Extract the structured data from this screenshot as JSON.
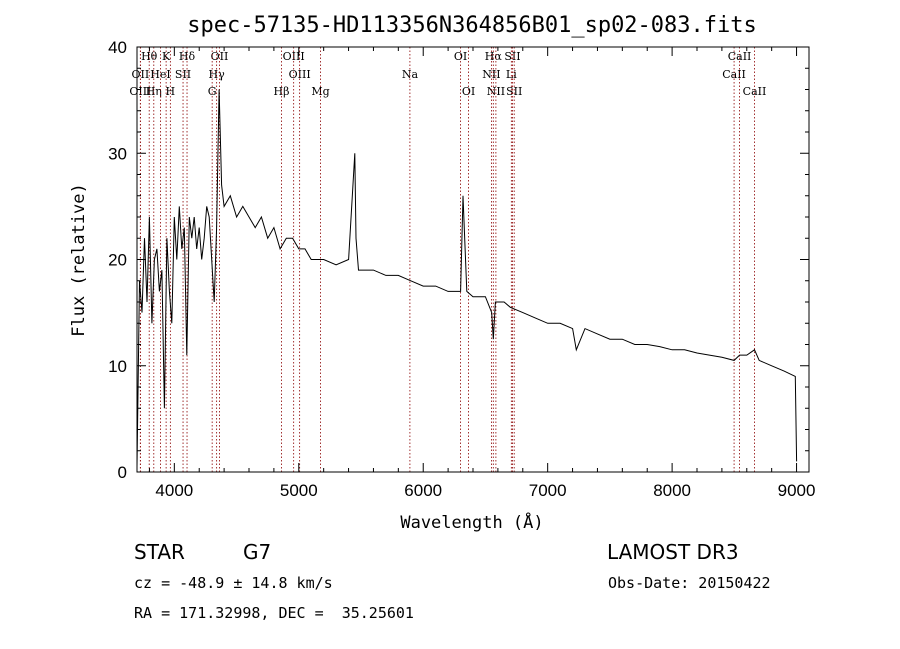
{
  "chart_data": {
    "type": "line",
    "title": "spec-57135-HD113356N364856B01_sp02-083.fits",
    "xlabel": "Wavelength (Å)",
    "ylabel": "Flux (relative)",
    "xlim": [
      3700,
      9100
    ],
    "ylim": [
      0,
      40
    ],
    "xticks": [
      4000,
      5000,
      6000,
      7000,
      8000,
      9000
    ],
    "yticks": [
      0,
      10,
      20,
      30,
      40
    ],
    "spectral_lines": [
      {
        "label": "Hθ",
        "wavelength": 3798,
        "row": 0
      },
      {
        "label": "K",
        "wavelength": 3934,
        "row": 0
      },
      {
        "label": "Hδ",
        "wavelength": 4102,
        "row": 0
      },
      {
        "label": "OII",
        "wavelength": 4363,
        "row": 0
      },
      {
        "label": "OIII",
        "wavelength": 4959,
        "row": 0
      },
      {
        "label": "OI",
        "wavelength": 6300,
        "row": 0
      },
      {
        "label": "Hα",
        "wavelength": 6563,
        "row": 0
      },
      {
        "label": "SII",
        "wavelength": 6717,
        "row": 0
      },
      {
        "label": "CaII",
        "wavelength": 8542,
        "row": 0
      },
      {
        "label": "OII",
        "wavelength": 3727,
        "row": 1
      },
      {
        "label": "HeI",
        "wavelength": 3889,
        "row": 1
      },
      {
        "label": "SII",
        "wavelength": 4070,
        "row": 1
      },
      {
        "label": "Hγ",
        "wavelength": 4340,
        "row": 1
      },
      {
        "label": "OIII",
        "wavelength": 5007,
        "row": 1
      },
      {
        "label": "Na",
        "wavelength": 5893,
        "row": 1
      },
      {
        "label": "NII",
        "wavelength": 6548,
        "row": 1
      },
      {
        "label": "Li",
        "wavelength": 6708,
        "row": 1
      },
      {
        "label": "CaII",
        "wavelength": 8498,
        "row": 1
      },
      {
        "label": "OIII",
        "wavelength": 3727,
        "row": 2
      },
      {
        "label": "Hη",
        "wavelength": 3835,
        "row": 2
      },
      {
        "label": "H",
        "wavelength": 3968,
        "row": 2
      },
      {
        "label": "G",
        "wavelength": 4304,
        "row": 2
      },
      {
        "label": "Hβ",
        "wavelength": 4861,
        "row": 2
      },
      {
        "label": "Mg",
        "wavelength": 5175,
        "row": 2
      },
      {
        "label": "OI",
        "wavelength": 6364,
        "row": 2
      },
      {
        "label": "NII",
        "wavelength": 6584,
        "row": 2
      },
      {
        "label": "SII",
        "wavelength": 6731,
        "row": 2
      },
      {
        "label": "CaII",
        "wavelength": 8662,
        "row": 2
      }
    ],
    "series": [
      {
        "name": "flux",
        "x": [
          3700,
          3720,
          3740,
          3760,
          3780,
          3800,
          3820,
          3840,
          3860,
          3880,
          3900,
          3920,
          3940,
          3960,
          3980,
          4000,
          4020,
          4040,
          4060,
          4080,
          4100,
          4120,
          4140,
          4160,
          4180,
          4200,
          4220,
          4240,
          4260,
          4280,
          4300,
          4320,
          4340,
          4360,
          4380,
          4400,
          4450,
          4500,
          4550,
          4600,
          4650,
          4700,
          4750,
          4800,
          4850,
          4900,
          4950,
          5000,
          5050,
          5100,
          5150,
          5200,
          5300,
          5400,
          5450,
          5460,
          5480,
          5500,
          5600,
          5700,
          5800,
          5900,
          6000,
          6100,
          6200,
          6300,
          6320,
          6350,
          6400,
          6500,
          6550,
          6563,
          6580,
          6650,
          6700,
          6800,
          6900,
          7000,
          7100,
          7200,
          7230,
          7300,
          7400,
          7500,
          7600,
          7700,
          7800,
          7900,
          8000,
          8100,
          8200,
          8300,
          8400,
          8498,
          8542,
          8600,
          8662,
          8700,
          8800,
          8900,
          8990,
          9000
        ],
        "y": [
          0.5,
          18,
          15,
          22,
          16,
          24,
          14,
          20,
          21,
          17,
          19,
          6,
          22,
          17,
          14,
          24,
          20,
          25,
          21,
          23,
          11,
          24,
          22,
          24,
          21,
          23,
          20,
          22,
          25,
          24,
          20,
          16,
          23,
          36,
          27,
          25,
          26,
          24,
          25,
          24,
          23,
          24,
          22,
          23,
          21,
          22,
          22,
          21,
          21,
          20,
          20,
          20,
          19.5,
          20,
          30,
          22,
          19,
          19,
          19,
          18.5,
          18.5,
          18,
          17.5,
          17.5,
          17,
          17,
          26,
          17,
          16.5,
          16.5,
          15,
          12.5,
          16,
          16,
          15.5,
          15,
          14.5,
          14,
          14,
          13.5,
          11.5,
          13.5,
          13,
          12.5,
          12.5,
          12,
          12,
          11.8,
          11.5,
          11.5,
          11.2,
          11,
          10.8,
          10.5,
          11,
          11,
          11.5,
          10.5,
          10,
          9.5,
          9,
          1
        ]
      }
    ]
  },
  "info": {
    "object_type": "STAR",
    "subclass": "G7",
    "survey": "LAMOST DR3",
    "redshift_line": "cz = -48.9 ± 14.8 km/s",
    "obs_date": "Obs-Date: 20150422",
    "coords": "RA = 171.32998, DEC =  35.25601"
  }
}
